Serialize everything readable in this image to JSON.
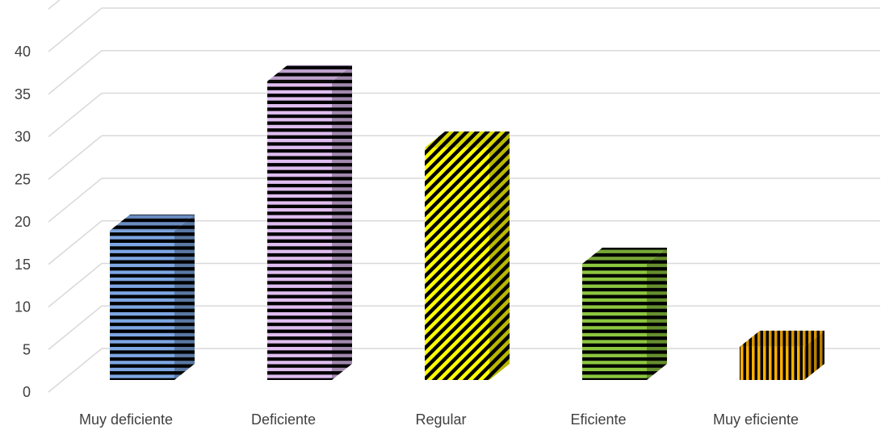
{
  "chart_data": {
    "type": "bar",
    "style": "3d-column",
    "title": "",
    "xlabel": "",
    "ylabel": "",
    "ylim": [
      0,
      40
    ],
    "yticks": [
      0,
      5,
      10,
      15,
      20,
      25,
      30,
      35,
      40
    ],
    "grid": true,
    "legend": "none",
    "categories": [
      "Muy deficiente",
      "Deficiente",
      "Regular",
      "Eficiente",
      "Muy eficiente"
    ],
    "values": [
      18,
      36,
      28,
      14,
      4
    ],
    "bar_styles": [
      {
        "pattern": "horizontal-stripes",
        "color": "#7da6e3"
      },
      {
        "pattern": "horizontal-stripes",
        "color": "#e0bdf0"
      },
      {
        "pattern": "diagonal-stripes",
        "color": "#ffff00"
      },
      {
        "pattern": "horizontal-stripes",
        "color": "#8cc63f"
      },
      {
        "pattern": "vertical-stripes",
        "color": "#ffb000"
      }
    ],
    "grid_color": "#d9d9d9",
    "label_color": "#404040"
  }
}
